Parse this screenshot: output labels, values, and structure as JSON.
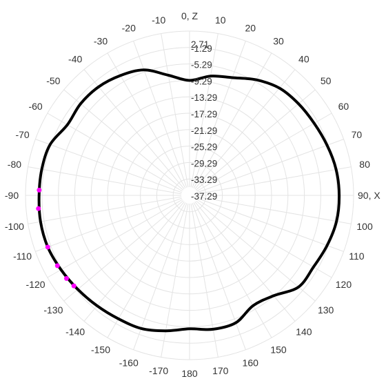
{
  "chart_data": {
    "type": "line",
    "subtype": "polar",
    "title": "",
    "axis_marker_0": "0, Z",
    "axis_marker_90": "90, X",
    "angle_tick_labels": [
      "-170",
      "-160",
      "-150",
      "-140",
      "-130",
      "-120",
      "-110",
      "-100",
      "-90",
      "-80",
      "-70",
      "-60",
      "-50",
      "-40",
      "-30",
      "-20",
      "-10",
      "0",
      "10",
      "20",
      "30",
      "40",
      "50",
      "60",
      "70",
      "80",
      "90",
      "100",
      "110",
      "120",
      "130",
      "140",
      "150",
      "160",
      "170",
      "180"
    ],
    "radial_tick_labels": [
      "2.71",
      "-1.29",
      "-5.29",
      "-9.29",
      "-13.29",
      "-17.29",
      "-21.29",
      "-25.29",
      "-29.29",
      "-33.29",
      "-37.29"
    ],
    "r_range": [
      -37.29,
      2.71
    ],
    "grid": true,
    "colors": {
      "series": "#000000",
      "highlight": "#ff00ff",
      "grid": "#e3e3e3",
      "text": "#333333"
    },
    "series": [
      {
        "angles": [
          0,
          10,
          20,
          30,
          40,
          50,
          60,
          70,
          80,
          90,
          100,
          110,
          120,
          130,
          140,
          150,
          160,
          170,
          180,
          190,
          200,
          210,
          220,
          230,
          240,
          250,
          260,
          270,
          280,
          290,
          300,
          310,
          320,
          330,
          340,
          350,
          360
        ],
        "values": [
          -9.3,
          -7.8,
          -6.8,
          -4.8,
          -3.2,
          -2.6,
          -2.2,
          -1.6,
          -1.0,
          -0.8,
          -0.9,
          -1.6,
          -2.4,
          -2.6,
          -5.4,
          -6.3,
          -4.3,
          -4.2,
          -4.8,
          -3.8,
          -2.8,
          -2.6,
          -2.2,
          -1.7,
          -1.1,
          -0.5,
          -0.4,
          -0.6,
          -0.7,
          -1.1,
          -2.9,
          -2.6,
          -2.8,
          -3.6,
          -4.8,
          -7.6,
          -9.3
        ]
      }
    ],
    "highlight_points": [
      {
        "angle": 272,
        "value": -0.6
      },
      {
        "angle": 265,
        "value": -0.3
      },
      {
        "angle": 250,
        "value": -0.5
      },
      {
        "angle": 242,
        "value": -0.8
      },
      {
        "angle": 236,
        "value": -1.1
      },
      {
        "angle": 232,
        "value": -1.5
      }
    ]
  }
}
